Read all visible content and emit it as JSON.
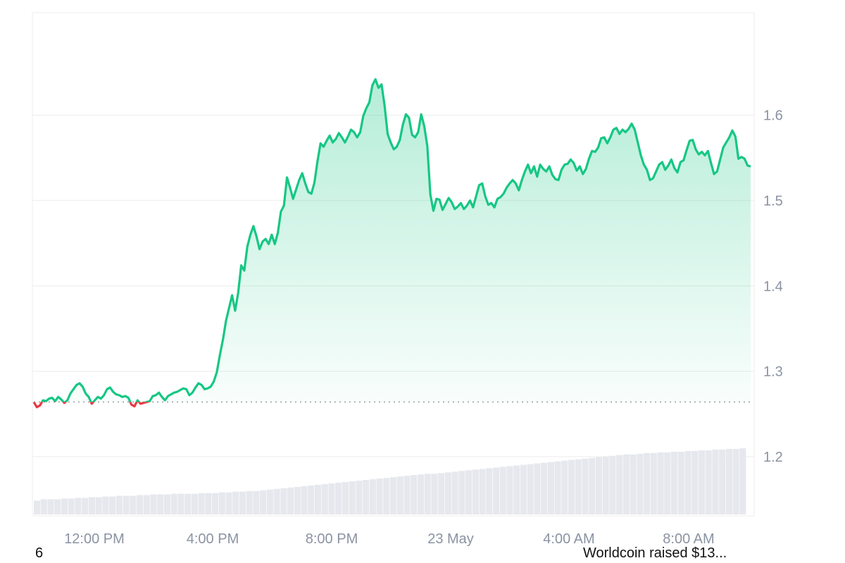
{
  "chart_data": {
    "type": "area",
    "x_tick_labels": [
      "12:00 PM",
      "4:00 PM",
      "8:00 PM",
      "23 May",
      "4:00 AM",
      "8:00 AM"
    ],
    "y_tick_labels": [
      "1.2",
      "1.3",
      "1.4",
      "1.5",
      "1.6"
    ],
    "ylim": [
      1.12,
      1.72
    ],
    "baseline": 1.264,
    "grid": true,
    "legend": "none",
    "colors": {
      "up": "#16c784",
      "down": "#ea3943",
      "grid": "#ececec",
      "volume": "#e6e8ee",
      "baseline": "#9aa0a6"
    },
    "price_series": [
      1.264,
      1.258,
      1.26,
      1.266,
      1.265,
      1.268,
      1.269,
      1.265,
      1.27,
      1.267,
      1.263,
      1.266,
      1.274,
      1.279,
      1.284,
      1.286,
      1.282,
      1.274,
      1.27,
      1.262,
      1.266,
      1.27,
      1.268,
      1.272,
      1.279,
      1.281,
      1.276,
      1.273,
      1.272,
      1.27,
      1.271,
      1.269,
      1.261,
      1.259,
      1.266,
      1.262,
      1.263,
      1.264,
      1.265,
      1.271,
      1.272,
      1.275,
      1.27,
      1.266,
      1.271,
      1.273,
      1.275,
      1.276,
      1.278,
      1.28,
      1.279,
      1.272,
      1.275,
      1.281,
      1.286,
      1.284,
      1.279,
      1.28,
      1.282,
      1.288,
      1.299,
      1.319,
      1.337,
      1.359,
      1.374,
      1.389,
      1.371,
      1.392,
      1.424,
      1.418,
      1.446,
      1.46,
      1.47,
      1.458,
      1.443,
      1.452,
      1.455,
      1.449,
      1.46,
      1.449,
      1.462,
      1.487,
      1.494,
      1.527,
      1.515,
      1.502,
      1.513,
      1.524,
      1.532,
      1.52,
      1.51,
      1.508,
      1.521,
      1.546,
      1.567,
      1.563,
      1.57,
      1.576,
      1.568,
      1.572,
      1.579,
      1.574,
      1.568,
      1.575,
      1.583,
      1.58,
      1.574,
      1.58,
      1.599,
      1.608,
      1.615,
      1.635,
      1.642,
      1.632,
      1.636,
      1.611,
      1.578,
      1.568,
      1.56,
      1.563,
      1.571,
      1.589,
      1.601,
      1.597,
      1.577,
      1.574,
      1.58,
      1.601,
      1.587,
      1.564,
      1.507,
      1.488,
      1.502,
      1.501,
      1.489,
      1.496,
      1.503,
      1.498,
      1.49,
      1.493,
      1.497,
      1.49,
      1.494,
      1.5,
      1.492,
      1.505,
      1.518,
      1.52,
      1.505,
      1.495,
      1.497,
      1.492,
      1.502,
      1.504,
      1.508,
      1.515,
      1.52,
      1.524,
      1.52,
      1.512,
      1.524,
      1.534,
      1.542,
      1.532,
      1.54,
      1.528,
      1.542,
      1.537,
      1.534,
      1.54,
      1.53,
      1.525,
      1.524,
      1.536,
      1.542,
      1.543,
      1.548,
      1.544,
      1.535,
      1.54,
      1.531,
      1.537,
      1.549,
      1.558,
      1.557,
      1.562,
      1.573,
      1.574,
      1.567,
      1.574,
      1.583,
      1.585,
      1.578,
      1.583,
      1.58,
      1.584,
      1.59,
      1.583,
      1.568,
      1.553,
      1.542,
      1.536,
      1.524,
      1.526,
      1.534,
      1.542,
      1.545,
      1.536,
      1.541,
      1.548,
      1.538,
      1.533,
      1.545,
      1.547,
      1.559,
      1.57,
      1.571,
      1.56,
      1.554,
      1.557,
      1.553,
      1.558,
      1.544,
      1.531,
      1.534,
      1.548,
      1.562,
      1.568,
      1.574,
      1.582,
      1.575,
      1.549,
      1.551,
      1.549,
      1.541,
      1.54
    ],
    "volume_series": [
      0.2,
      0.22,
      0.22,
      0.22,
      0.23,
      0.23,
      0.24,
      0.24,
      0.25,
      0.25,
      0.26,
      0.26,
      0.27,
      0.27,
      0.27,
      0.28,
      0.28,
      0.29,
      0.29,
      0.29,
      0.3,
      0.3,
      0.3,
      0.3,
      0.31,
      0.31,
      0.31,
      0.32,
      0.32,
      0.33,
      0.33,
      0.34,
      0.34,
      0.35,
      0.36,
      0.37,
      0.38,
      0.39,
      0.4,
      0.41,
      0.42,
      0.43,
      0.44,
      0.45,
      0.46,
      0.47,
      0.48,
      0.49,
      0.5,
      0.51,
      0.52,
      0.53,
      0.54,
      0.55,
      0.56,
      0.57,
      0.58,
      0.59,
      0.59,
      0.6,
      0.61,
      0.62,
      0.63,
      0.64,
      0.65,
      0.66,
      0.67,
      0.68,
      0.69,
      0.7,
      0.71,
      0.72,
      0.73,
      0.74,
      0.75,
      0.76,
      0.77,
      0.78,
      0.79,
      0.8,
      0.81,
      0.82,
      0.83,
      0.84,
      0.85,
      0.86,
      0.87,
      0.87,
      0.88,
      0.89,
      0.89,
      0.9,
      0.9,
      0.91,
      0.91,
      0.92,
      0.92,
      0.93,
      0.93,
      0.94,
      0.94,
      0.95,
      0.95,
      0.96
    ]
  },
  "footer": {
    "left_text": "6",
    "right_text": "Worldcoin raised $13..."
  }
}
